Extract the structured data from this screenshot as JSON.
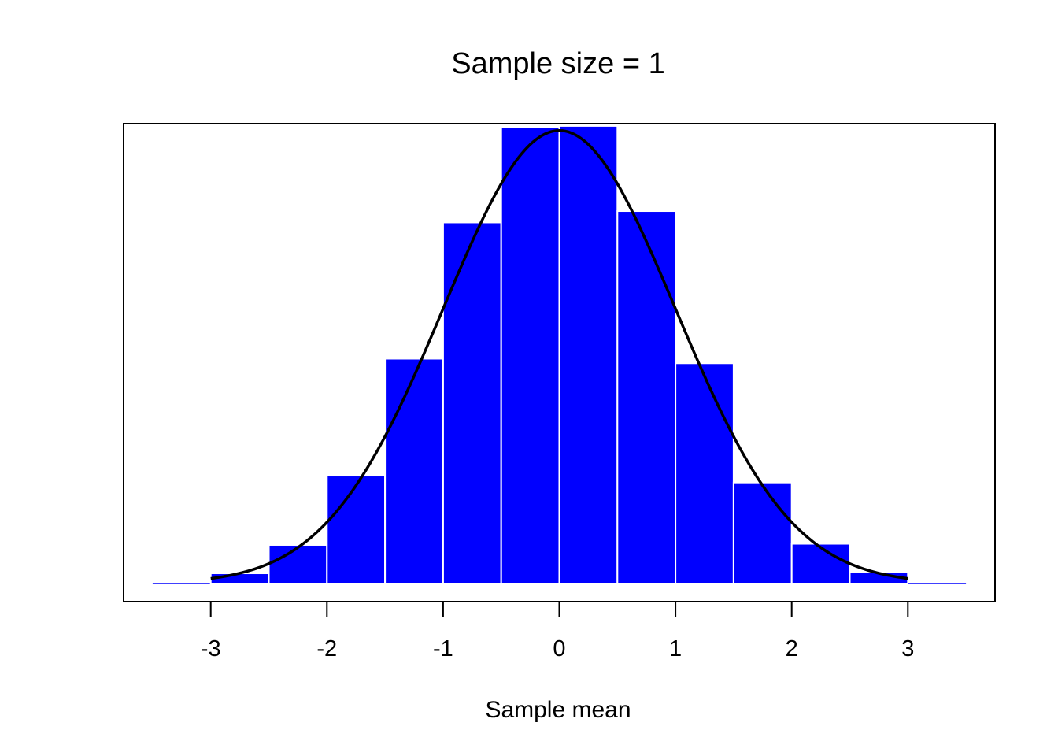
{
  "chart_data": {
    "type": "bar",
    "title": "Sample size = 1",
    "xlabel": "Sample mean",
    "ylabel": "",
    "xlim": [
      -3.75,
      3.75
    ],
    "ylim": [
      0,
      0.405
    ],
    "x_ticks": [
      "-3",
      "-2",
      "-1",
      "0",
      "1",
      "2",
      "3"
    ],
    "y_axis_shown": false,
    "grid": false,
    "legend": "none",
    "bins": [
      {
        "x0": -3.5,
        "x1": -3.0,
        "density": 0.0
      },
      {
        "x0": -3.0,
        "x1": -2.5,
        "density": 0.009
      },
      {
        "x0": -2.5,
        "x1": -2.0,
        "density": 0.034
      },
      {
        "x0": -2.0,
        "x1": -1.5,
        "density": 0.095
      },
      {
        "x0": -1.5,
        "x1": -1.0,
        "density": 0.198
      },
      {
        "x0": -1.0,
        "x1": -0.5,
        "density": 0.318
      },
      {
        "x0": -0.5,
        "x1": 0.0,
        "density": 0.402
      },
      {
        "x0": 0.0,
        "x1": 0.5,
        "density": 0.403
      },
      {
        "x0": 0.5,
        "x1": 1.0,
        "density": 0.328
      },
      {
        "x0": 1.0,
        "x1": 1.5,
        "density": 0.194
      },
      {
        "x0": 1.5,
        "x1": 2.0,
        "density": 0.089
      },
      {
        "x0": 2.0,
        "x1": 2.5,
        "density": 0.035
      },
      {
        "x0": 2.5,
        "x1": 3.0,
        "density": 0.01
      },
      {
        "x0": 3.0,
        "x1": 3.5,
        "density": 0.0
      }
    ],
    "curve": {
      "kind": "normal_density",
      "mean": 0,
      "sd": 1,
      "x_range": [
        -3,
        3
      ]
    },
    "colors": {
      "bar_fill": "#0000ff",
      "bar_border": "#ffffff",
      "curve": "#000000",
      "frame": "#000000"
    }
  }
}
